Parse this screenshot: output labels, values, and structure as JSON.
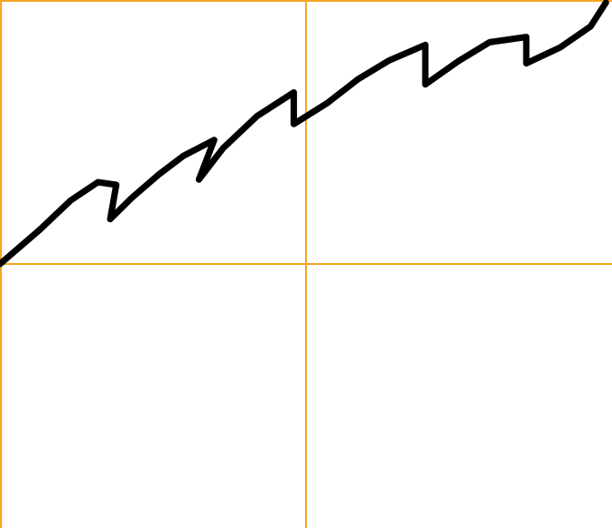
{
  "chart_data": {
    "type": "line",
    "title": "",
    "xlabel": "",
    "ylabel": "",
    "xlim": [
      -1,
      1
    ],
    "ylim": [
      -1,
      1
    ],
    "grid": false,
    "axes": "cartesian-center",
    "colors": {
      "axis": "#F5A623",
      "line": "#000000",
      "background": "#FFFFFF"
    },
    "series": [
      {
        "x": [
          -1.0,
          -0.87,
          -0.77,
          -0.68,
          -0.62,
          -0.64,
          -0.57,
          -0.48,
          -0.4,
          -0.3,
          -0.35,
          -0.27,
          -0.16,
          -0.04,
          -0.04,
          0.07,
          0.17,
          0.27,
          0.39,
          0.39,
          0.5,
          0.6,
          0.72,
          0.72,
          0.83,
          0.93,
          0.98
        ],
        "values": [
          0.0,
          0.13,
          0.24,
          0.31,
          0.3,
          0.17,
          0.25,
          0.34,
          0.41,
          0.47,
          0.32,
          0.44,
          0.56,
          0.65,
          0.53,
          0.61,
          0.7,
          0.77,
          0.83,
          0.68,
          0.77,
          0.84,
          0.86,
          0.76,
          0.82,
          0.9,
          0.99
        ]
      }
    ]
  }
}
